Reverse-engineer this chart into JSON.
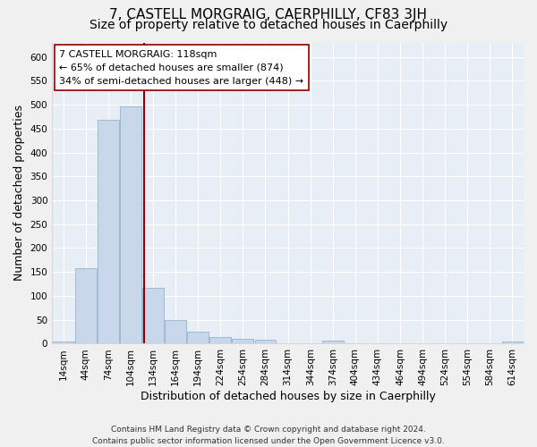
{
  "title": "7, CASTELL MORGRAIG, CAERPHILLY, CF83 3JH",
  "subtitle": "Size of property relative to detached houses in Caerphilly",
  "xlabel": "Distribution of detached houses by size in Caerphilly",
  "ylabel": "Number of detached properties",
  "bar_color": "#c8d8ea",
  "bar_edgecolor": "#94b4cc",
  "categories": [
    "14sqm",
    "44sqm",
    "74sqm",
    "104sqm",
    "134sqm",
    "164sqm",
    "194sqm",
    "224sqm",
    "254sqm",
    "284sqm",
    "314sqm",
    "344sqm",
    "374sqm",
    "404sqm",
    "434sqm",
    "464sqm",
    "494sqm",
    "524sqm",
    "554sqm",
    "584sqm",
    "614sqm"
  ],
  "values": [
    5,
    158,
    469,
    497,
    116,
    50,
    25,
    14,
    10,
    8,
    0,
    0,
    6,
    0,
    0,
    0,
    0,
    0,
    0,
    0,
    5
  ],
  "vline_color": "#8b0000",
  "vline_x": 3.6,
  "ylim": [
    0,
    630
  ],
  "yticks": [
    0,
    50,
    100,
    150,
    200,
    250,
    300,
    350,
    400,
    450,
    500,
    550,
    600
  ],
  "annotation_text": "7 CASTELL MORGRAIG: 118sqm\n← 65% of detached houses are smaller (874)\n34% of semi-detached houses are larger (448) →",
  "annotation_box_facecolor": "#ffffff",
  "annotation_box_edgecolor": "#8b0000",
  "footer_line1": "Contains HM Land Registry data © Crown copyright and database right 2024.",
  "footer_line2": "Contains public sector information licensed under the Open Government Licence v3.0.",
  "background_color": "#e8eef5",
  "grid_color": "#ffffff",
  "title_fontsize": 11,
  "subtitle_fontsize": 10,
  "ylabel_fontsize": 9,
  "xlabel_fontsize": 9,
  "tick_fontsize": 7.5,
  "annotation_fontsize": 8,
  "footer_fontsize": 6.5
}
